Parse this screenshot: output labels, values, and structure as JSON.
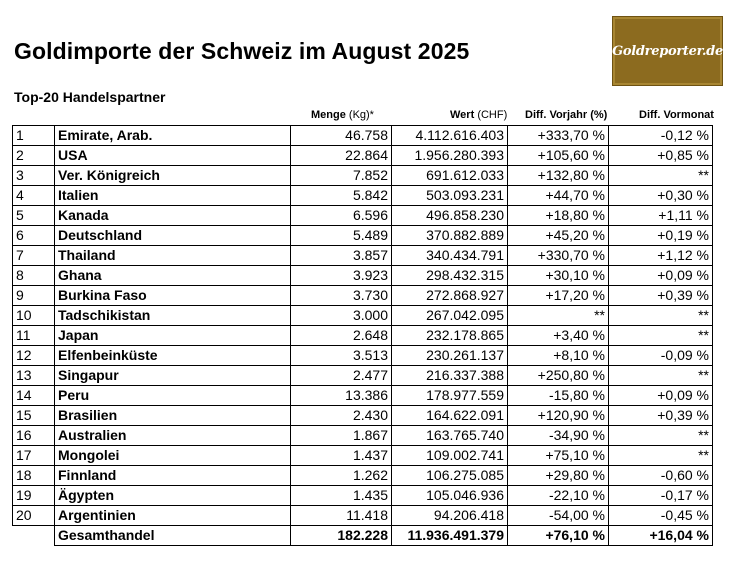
{
  "title": "Goldimporte der Schweiz im August 2025",
  "subtitle": "Top-20 Handelspartner",
  "logo": "Goldreporter.de",
  "headers": {
    "menge_label": "Menge",
    "menge_unit": "(Kg)*",
    "wert_label": "Wert",
    "wert_unit": "(CHF)",
    "vorjahr": "Diff. Vorjahr (%)",
    "vormonat": "Diff. Vormonat"
  },
  "rows": [
    {
      "rank": "1",
      "name": "Emirate, Arab.",
      "menge": "46.758",
      "wert": "4.112.616.403",
      "vj": "+333,70 %",
      "vm": "-0,12 %"
    },
    {
      "rank": "2",
      "name": "USA",
      "menge": "22.864",
      "wert": "1.956.280.393",
      "vj": "+105,60 %",
      "vm": "+0,85 %"
    },
    {
      "rank": "3",
      "name": "Ver. Königreich",
      "menge": "7.852",
      "wert": "691.612.033",
      "vj": "+132,80 %",
      "vm": "**"
    },
    {
      "rank": "4",
      "name": "Italien",
      "menge": "5.842",
      "wert": "503.093.231",
      "vj": "+44,70 %",
      "vm": "+0,30 %"
    },
    {
      "rank": "5",
      "name": "Kanada",
      "menge": "6.596",
      "wert": "496.858.230",
      "vj": "+18,80 %",
      "vm": "+1,11 %"
    },
    {
      "rank": "6",
      "name": "Deutschland",
      "menge": "5.489",
      "wert": "370.882.889",
      "vj": "+45,20 %",
      "vm": "+0,19 %"
    },
    {
      "rank": "7",
      "name": "Thailand",
      "menge": "3.857",
      "wert": "340.434.791",
      "vj": "+330,70 %",
      "vm": "+1,12 %"
    },
    {
      "rank": "8",
      "name": "Ghana",
      "menge": "3.923",
      "wert": "298.432.315",
      "vj": "+30,10 %",
      "vm": "+0,09 %"
    },
    {
      "rank": "9",
      "name": "Burkina Faso",
      "menge": "3.730",
      "wert": "272.868.927",
      "vj": "+17,20 %",
      "vm": "+0,39 %"
    },
    {
      "rank": "10",
      "name": "Tadschikistan",
      "menge": "3.000",
      "wert": "267.042.095",
      "vj": "**",
      "vm": "**"
    },
    {
      "rank": "11",
      "name": "Japan",
      "menge": "2.648",
      "wert": "232.178.865",
      "vj": "+3,40 %",
      "vm": "**"
    },
    {
      "rank": "12",
      "name": "Elfenbeinküste",
      "menge": "3.513",
      "wert": "230.261.137",
      "vj": "+8,10 %",
      "vm": "-0,09 %"
    },
    {
      "rank": "13",
      "name": "Singapur",
      "menge": "2.477",
      "wert": "216.337.388",
      "vj": "+250,80 %",
      "vm": "**"
    },
    {
      "rank": "14",
      "name": "Peru",
      "menge": "13.386",
      "wert": "178.977.559",
      "vj": "-15,80 %",
      "vm": "+0,09 %"
    },
    {
      "rank": "15",
      "name": "Brasilien",
      "menge": "2.430",
      "wert": "164.622.091",
      "vj": "+120,90 %",
      "vm": "+0,39 %"
    },
    {
      "rank": "16",
      "name": "Australien",
      "menge": "1.867",
      "wert": "163.765.740",
      "vj": "-34,90 %",
      "vm": "**"
    },
    {
      "rank": "17",
      "name": "Mongolei",
      "menge": "1.437",
      "wert": "109.002.741",
      "vj": "+75,10 %",
      "vm": "**"
    },
    {
      "rank": "18",
      "name": "Finnland",
      "menge": "1.262",
      "wert": "106.275.085",
      "vj": "+29,80 %",
      "vm": "-0,60 %"
    },
    {
      "rank": "19",
      "name": "Ägypten",
      "menge": "1.435",
      "wert": "105.046.936",
      "vj": "-22,10 %",
      "vm": "-0,17 %"
    },
    {
      "rank": "20",
      "name": "Argentinien",
      "menge": "11.418",
      "wert": "94.206.418",
      "vj": "-54,00 %",
      "vm": "-0,45 %"
    }
  ],
  "total": {
    "name": "Gesamthandel",
    "menge": "182.228",
    "wert": "11.936.491.379",
    "vj": "+76,10 %",
    "vm": "+16,04 %"
  }
}
